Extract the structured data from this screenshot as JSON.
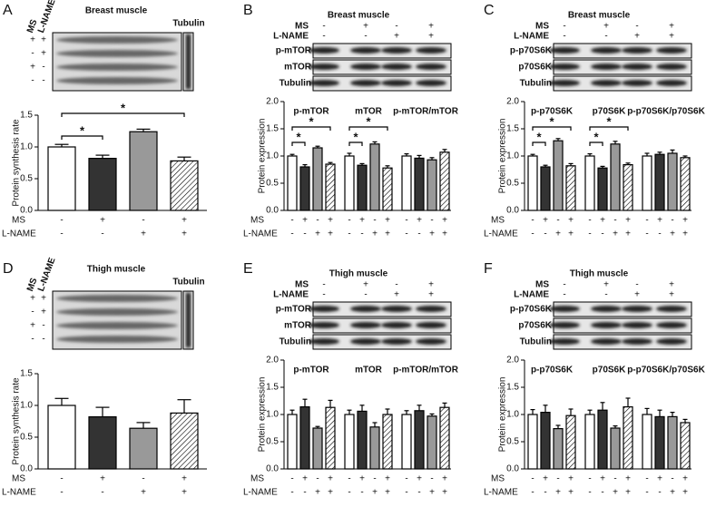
{
  "chart_data": [
    {
      "type": "bar",
      "panel": "A",
      "title": "Breast muscle",
      "ylabel": "Protein synthesis rate",
      "blot": {
        "columns": [
          "MS",
          "L-NAME"
        ],
        "rows": [
          [
            "+",
            "+"
          ],
          [
            "-",
            "+"
          ],
          [
            "+",
            "-"
          ],
          [
            "-",
            "-"
          ]
        ],
        "loading": "Tubulin"
      },
      "ylim": [
        0,
        1.5
      ],
      "yticks": [
        {
          "value": 0,
          "label": "0.0"
        },
        0.5,
        {
          "value": 1,
          "label": "1.0"
        },
        1.5
      ],
      "values": [
        1.0,
        0.82,
        1.24,
        0.78
      ],
      "errors": [
        0.04,
        0.05,
        0.04,
        0.06
      ],
      "colors": [
        "#ffffff",
        "#333333",
        "#999999",
        "#ffffff"
      ],
      "hatched": [
        false,
        false,
        false,
        true
      ],
      "conditions": [
        {
          "name": "MS",
          "signs": [
            "-",
            "+",
            "-",
            "+"
          ]
        },
        {
          "name": "L-NAME",
          "signs": [
            "-",
            "-",
            "+",
            "+"
          ]
        }
      ],
      "comparisons": [
        {
          "bars": [
            0,
            1
          ],
          "label": "*"
        },
        {
          "bars": [
            0,
            3
          ],
          "label": "*"
        }
      ]
    },
    {
      "type": "grouped-bar",
      "panel": "B",
      "title": "Breast muscle",
      "ylabel": "Protein expression",
      "blot": {
        "rows": [
          "p-mTOR",
          "mTOR",
          "Tubulin"
        ]
      },
      "ylim": [
        0,
        2
      ],
      "yticks": [
        {
          "value": 0,
          "label": "0.0"
        },
        0.5,
        {
          "value": 1,
          "label": "1.0"
        },
        1.5,
        {
          "value": 2,
          "label": "2.0"
        }
      ],
      "colors": [
        "#ffffff",
        "#333333",
        "#999999",
        "#ffffff"
      ],
      "hatched": [
        false,
        false,
        false,
        true
      ],
      "conditions": [
        {
          "name": "MS",
          "signs": [
            "-",
            "+",
            "-",
            "+"
          ]
        },
        {
          "name": "L-NAME",
          "signs": [
            "-",
            "-",
            "+",
            "+"
          ]
        }
      ],
      "groups": [
        {
          "name": "p-mTOR",
          "values": [
            1.0,
            0.8,
            1.15,
            0.85
          ],
          "errors": [
            0.03,
            0.04,
            0.03,
            0.03
          ],
          "comparisons": [
            {
              "bars": [
                0,
                1
              ],
              "label": "*"
            },
            {
              "bars": [
                0,
                3
              ],
              "label": "*"
            }
          ]
        },
        {
          "name": "mTOR",
          "values": [
            1.0,
            0.83,
            1.22,
            0.78
          ],
          "errors": [
            0.05,
            0.03,
            0.04,
            0.04
          ],
          "comparisons": [
            {
              "bars": [
                0,
                1
              ],
              "label": "*"
            },
            {
              "bars": [
                0,
                3
              ],
              "label": "*"
            }
          ]
        },
        {
          "name": "p-mTOR/mTOR",
          "values": [
            1.0,
            0.96,
            0.93,
            1.07
          ],
          "errors": [
            0.04,
            0.05,
            0.04,
            0.05
          ],
          "comparisons": []
        }
      ]
    },
    {
      "type": "grouped-bar",
      "panel": "C",
      "title": "Breast muscle",
      "ylabel": "Protein expression",
      "blot": {
        "rows": [
          "p-p70S6K",
          "p70S6K",
          "Tubulin"
        ]
      },
      "ylim": [
        0,
        2
      ],
      "yticks": [
        {
          "value": 0,
          "label": "0.0"
        },
        0.5,
        {
          "value": 1,
          "label": "1.0"
        },
        1.5,
        {
          "value": 2,
          "label": "2.0"
        }
      ],
      "colors": [
        "#ffffff",
        "#333333",
        "#999999",
        "#ffffff"
      ],
      "hatched": [
        false,
        false,
        false,
        true
      ],
      "conditions": [
        {
          "name": "MS",
          "signs": [
            "-",
            "+",
            "-",
            "+"
          ]
        },
        {
          "name": "L-NAME",
          "signs": [
            "-",
            "-",
            "+",
            "+"
          ]
        }
      ],
      "groups": [
        {
          "name": "p-p70S6K",
          "values": [
            1.0,
            0.8,
            1.28,
            0.82
          ],
          "errors": [
            0.03,
            0.03,
            0.04,
            0.04
          ],
          "comparisons": [
            {
              "bars": [
                0,
                1
              ],
              "label": "*"
            },
            {
              "bars": [
                0,
                3
              ],
              "label": "*"
            }
          ]
        },
        {
          "name": "p70S6K",
          "values": [
            1.0,
            0.78,
            1.22,
            0.84
          ],
          "errors": [
            0.04,
            0.03,
            0.05,
            0.03
          ],
          "comparisons": [
            {
              "bars": [
                0,
                1
              ],
              "label": "*"
            },
            {
              "bars": [
                0,
                3
              ],
              "label": "*"
            }
          ]
        },
        {
          "name": "p-p70S6K/p70S6K",
          "values": [
            1.0,
            1.03,
            1.05,
            0.97
          ],
          "errors": [
            0.05,
            0.04,
            0.06,
            0.03
          ],
          "comparisons": []
        }
      ]
    },
    {
      "type": "bar",
      "panel": "D",
      "title": "Thigh muscle",
      "ylabel": "Protein synthesis rate",
      "blot": {
        "columns": [
          "MS",
          "L-NAME"
        ],
        "rows": [
          [
            "+",
            "+"
          ],
          [
            "-",
            "+"
          ],
          [
            "+",
            "-"
          ],
          [
            "-",
            "-"
          ]
        ],
        "loading": "Tubulin"
      },
      "ylim": [
        0,
        1.5
      ],
      "yticks": [
        {
          "value": 0,
          "label": "0.0"
        },
        0.5,
        {
          "value": 1,
          "label": "1.0"
        },
        1.5
      ],
      "values": [
        1.0,
        0.82,
        0.64,
        0.88
      ],
      "errors": [
        0.11,
        0.15,
        0.09,
        0.21
      ],
      "colors": [
        "#ffffff",
        "#333333",
        "#999999",
        "#ffffff"
      ],
      "hatched": [
        false,
        false,
        false,
        true
      ],
      "conditions": [
        {
          "name": "MS",
          "signs": [
            "-",
            "+",
            "-",
            "+"
          ]
        },
        {
          "name": "L-NAME",
          "signs": [
            "-",
            "-",
            "+",
            "+"
          ]
        }
      ],
      "comparisons": []
    },
    {
      "type": "grouped-bar",
      "panel": "E",
      "title": "Thigh muscle",
      "ylabel": "Protein expression",
      "blot": {
        "rows": [
          "p-mTOR",
          "mTOR",
          "Tubulin"
        ]
      },
      "ylim": [
        0,
        2
      ],
      "yticks": [
        {
          "value": 0,
          "label": "0.0"
        },
        0.5,
        {
          "value": 1,
          "label": "1.0"
        },
        1.5,
        {
          "value": 2,
          "label": "2.0"
        }
      ],
      "colors": [
        "#ffffff",
        "#333333",
        "#999999",
        "#ffffff"
      ],
      "hatched": [
        false,
        false,
        false,
        true
      ],
      "conditions": [
        {
          "name": "MS",
          "signs": [
            "-",
            "+",
            "-",
            "+"
          ]
        },
        {
          "name": "L-NAME",
          "signs": [
            "-",
            "-",
            "+",
            "+"
          ]
        }
      ],
      "groups": [
        {
          "name": "p-mTOR",
          "values": [
            1.0,
            1.14,
            0.75,
            1.13
          ],
          "errors": [
            0.08,
            0.14,
            0.03,
            0.13
          ],
          "comparisons": []
        },
        {
          "name": "mTOR",
          "values": [
            1.0,
            1.06,
            0.77,
            1.0
          ],
          "errors": [
            0.08,
            0.11,
            0.08,
            0.1
          ],
          "comparisons": []
        },
        {
          "name": "p-mTOR/mTOR",
          "values": [
            1.0,
            1.07,
            0.97,
            1.13
          ],
          "errors": [
            0.07,
            0.1,
            0.04,
            0.08
          ],
          "comparisons": []
        }
      ]
    },
    {
      "type": "grouped-bar",
      "panel": "F",
      "title": "Thigh muscle",
      "ylabel": "Protein expression",
      "blot": {
        "rows": [
          "p-p70S6K",
          "p70S6K",
          "Tubulin"
        ]
      },
      "ylim": [
        0,
        2
      ],
      "yticks": [
        {
          "value": 0,
          "label": "0.0"
        },
        0.5,
        {
          "value": 1,
          "label": "1.0"
        },
        1.5,
        {
          "value": 2,
          "label": "2.0"
        }
      ],
      "colors": [
        "#ffffff",
        "#333333",
        "#999999",
        "#ffffff"
      ],
      "hatched": [
        false,
        false,
        false,
        true
      ],
      "conditions": [
        {
          "name": "MS",
          "signs": [
            "-",
            "+",
            "-",
            "+"
          ]
        },
        {
          "name": "L-NAME",
          "signs": [
            "-",
            "-",
            "+",
            "+"
          ]
        }
      ],
      "groups": [
        {
          "name": "p-p70S6K",
          "values": [
            1.0,
            1.04,
            0.74,
            0.98
          ],
          "errors": [
            0.09,
            0.13,
            0.06,
            0.12
          ],
          "comparisons": []
        },
        {
          "name": "p70S6K",
          "values": [
            1.0,
            1.08,
            0.75,
            1.14
          ],
          "errors": [
            0.08,
            0.14,
            0.04,
            0.16
          ],
          "comparisons": []
        },
        {
          "name": "p-p70S6K/p70S6K",
          "values": [
            1.0,
            0.96,
            0.96,
            0.85
          ],
          "errors": [
            0.11,
            0.12,
            0.08,
            0.06
          ],
          "comparisons": []
        }
      ]
    }
  ]
}
